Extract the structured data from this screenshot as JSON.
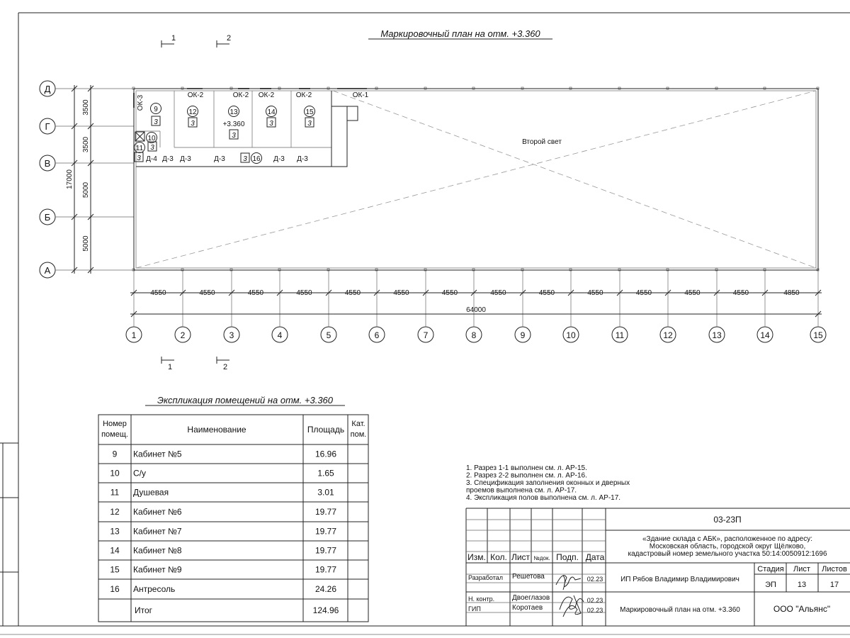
{
  "plan": {
    "title": "Маркировочный план на отм. +3.360",
    "row_axes": [
      "Д",
      "Г",
      "В",
      "Б",
      "А"
    ],
    "row_spans": [
      "3500",
      "3500",
      "5000",
      "5000"
    ],
    "row_total": "17000",
    "col_axes": [
      "1",
      "2",
      "3",
      "4",
      "5",
      "6",
      "7",
      "8",
      "9",
      "10",
      "11",
      "12",
      "13",
      "14",
      "15"
    ],
    "col_spans": [
      "4550",
      "4550",
      "4550",
      "4550",
      "4550",
      "4550",
      "4550",
      "4550",
      "4550",
      "4550",
      "4550",
      "4550",
      "4550",
      "4850"
    ],
    "col_total": "64000",
    "sections": [
      "1",
      "2"
    ],
    "double_height_label": "Второй свет",
    "elevation_label": "+3.360",
    "category": "3",
    "windows": {
      "ok1": "ОК-1",
      "ok2": "ОК-2",
      "ok3": "ОК-3"
    },
    "doors": {
      "d3": "Д-3",
      "d4": "Д-4"
    },
    "room_numbers": [
      "9",
      "10",
      "11",
      "12",
      "13",
      "14",
      "15",
      "16"
    ]
  },
  "explication": {
    "title": "Экспликация помещений на отм. +3.360",
    "headers": [
      "Номер помещ.",
      "Наименование",
      "Площадь",
      "Кат. пом."
    ],
    "rows": [
      [
        "9",
        "Кабинет №5",
        "16.96"
      ],
      [
        "10",
        "С/у",
        "1.65"
      ],
      [
        "11",
        "Душевая",
        "3.01"
      ],
      [
        "12",
        "Кабинет №6",
        "19.77"
      ],
      [
        "13",
        "Кабинет №7",
        "19.77"
      ],
      [
        "14",
        "Кабинет №8",
        "19.77"
      ],
      [
        "15",
        "Кабинет №9",
        "19.77"
      ],
      [
        "16",
        "Антресоль",
        "24.26"
      ]
    ],
    "total_label": "Итог",
    "total_value": "124.96"
  },
  "notes": [
    "1. Разрез 1-1 выполнен см. л. АР-15.",
    "2. Разрез 2-2 выполнен см. л. АР-16.",
    "3. Спецификация заполнения оконных и дверных",
    "    проемов выполнена см. л. АР-17.",
    "4. Экспликация полов выполнена см. л. АР-17."
  ],
  "title_block": {
    "code": "03-23П",
    "object_lines": [
      "«Здание склада с АБК», расположенное по адресу:",
      "Московская область, городской округ Щёлково,",
      "кадастровый номер земельного участка 50:14:0050912:1696"
    ],
    "headers": [
      "Изм.",
      "Кол.",
      "Лист",
      "№док.",
      "Подп.",
      "Дата"
    ],
    "people": [
      {
        "role": "Разработал",
        "name": "Решетова",
        "date": "02.23"
      },
      {
        "role": "Н. контр.",
        "name": "Двоеглазов",
        "date": "02.23"
      },
      {
        "role": "ГИП",
        "name": "Коротаев",
        "date": "02.23"
      }
    ],
    "organization": "ИП Рябов Владимир Владимирович",
    "stage_label": "Стадия",
    "sheet_label": "Лист",
    "sheets_label": "Листов",
    "stage": "ЭП",
    "sheet": "13",
    "sheets": "17",
    "sheet_title": "Маркировочный план на отм. +3.360",
    "company": "ООО \"Альянс\""
  }
}
